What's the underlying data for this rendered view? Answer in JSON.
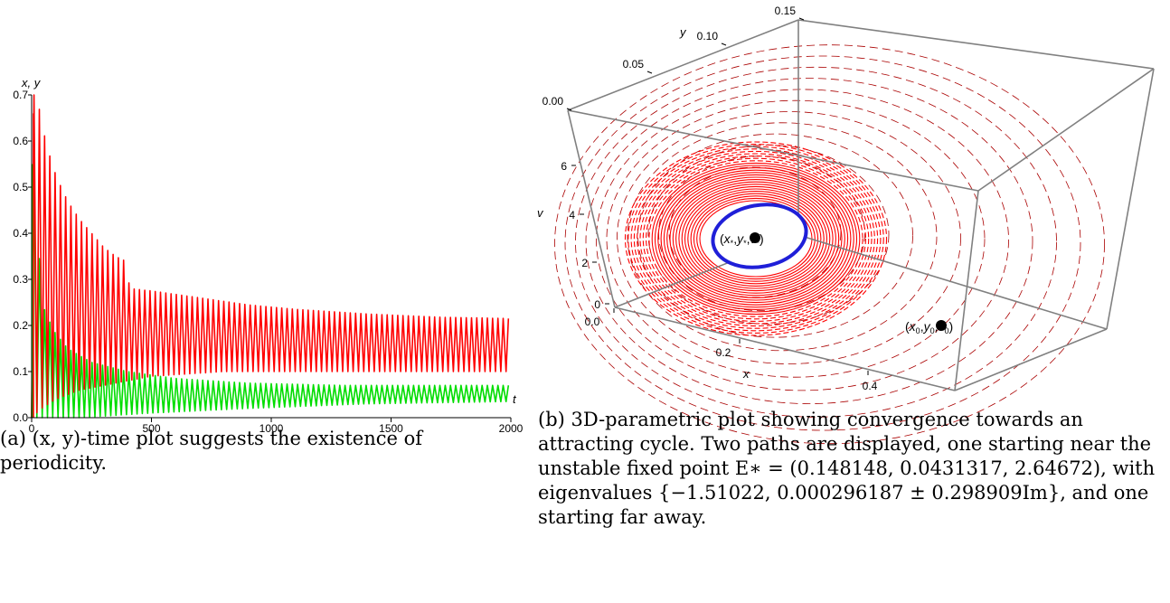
{
  "colors": {
    "x_series": "#ff0000",
    "y_series": "#00dd00",
    "cycle": "#1f1fd8",
    "far_path": "#aa0000",
    "box": "#808080"
  },
  "chart_data": [
    {
      "type": "line",
      "panel": "(a)",
      "ylabel": "x, y",
      "xlabel": "t",
      "xlim": [
        0,
        2000
      ],
      "ylim": [
        0,
        0.7
      ],
      "x_ticks": [
        "0",
        "500",
        "1000",
        "1500",
        "2000"
      ],
      "y_ticks": [
        "0.0",
        "0.1",
        "0.2",
        "0.3",
        "0.4",
        "0.5",
        "0.6",
        "0.7"
      ],
      "period": 22,
      "series": [
        {
          "color": "red",
          "peaks": [
            [
              20,
              0.7
            ],
            [
              62,
              0.59
            ],
            [
              105,
              0.52
            ],
            [
              150,
              0.47
            ],
            [
              200,
              0.43
            ],
            [
              250,
              0.4
            ],
            [
              300,
              0.37
            ],
            [
              350,
              0.35
            ],
            [
              390,
              0.34
            ],
            [
              410,
              0.28
            ],
            [
              500,
              0.275
            ],
            [
              700,
              0.26
            ],
            [
              900,
              0.245
            ],
            [
              1100,
              0.235
            ],
            [
              1400,
              0.225
            ],
            [
              1700,
              0.218
            ],
            [
              2000,
              0.215
            ]
          ],
          "troughs": [
            [
              0,
              0.0
            ],
            [
              40,
              0.02
            ],
            [
              100,
              0.04
            ],
            [
              200,
              0.06
            ],
            [
              300,
              0.07
            ],
            [
              400,
              0.08
            ],
            [
              500,
              0.09
            ],
            [
              800,
              0.1
            ],
            [
              1200,
              0.1
            ],
            [
              2000,
              0.1
            ]
          ]
        },
        {
          "color": "green",
          "peaks": [
            [
              5,
              0.55
            ],
            [
              45,
              0.245
            ],
            [
              90,
              0.19
            ],
            [
              150,
              0.15
            ],
            [
              250,
              0.12
            ],
            [
              400,
              0.1
            ],
            [
              600,
              0.085
            ],
            [
              900,
              0.075
            ],
            [
              1300,
              0.07
            ],
            [
              2000,
              0.07
            ]
          ],
          "troughs": [
            [
              0,
              0.0
            ],
            [
              200,
              0.0
            ],
            [
              500,
              0.01
            ],
            [
              900,
              0.02
            ],
            [
              1400,
              0.03
            ],
            [
              2000,
              0.035
            ]
          ]
        }
      ]
    },
    {
      "type": "scatter",
      "panel": "(b)",
      "xlabel": "x",
      "ylabel": "y",
      "zlabel": "v",
      "x_ticks": [
        "0.0",
        "0.2",
        "0.4"
      ],
      "y_ticks": [
        "0.00",
        "0.05",
        "0.10",
        "0.15"
      ],
      "v_ticks": [
        "0",
        "2",
        "4",
        "6"
      ],
      "points": [
        {
          "label_x": "x",
          "label_y": "y",
          "label_v": "v",
          "sub": "*",
          "values": [
            0.148148,
            0.0431317,
            2.64672
          ]
        },
        {
          "label_x": "x",
          "label_y": "y",
          "label_v": "v",
          "sub": "0"
        }
      ]
    }
  ],
  "captions": {
    "a": "(a) (x, y)-time plot suggests the existence of periodicity.",
    "b": "(b) 3D-parametric plot showing convergence towards an attracting cycle. Two paths are displayed, one starting near the unstable fixed point E∗ = (0.148148, 0.0431317, 2.64672), with eigenvalues {−1.51022, 0.000296187 ± 0.298909Im}, and one starting far away."
  }
}
